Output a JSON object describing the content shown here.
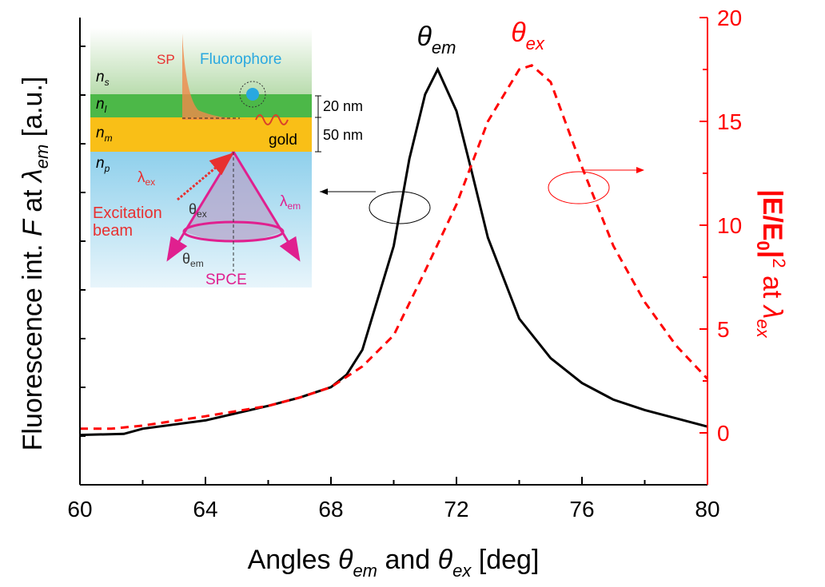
{
  "chart_data": {
    "type": "line",
    "x_label": [
      "Angles ",
      "θ",
      "em",
      " and ",
      "θ",
      "ex",
      " [deg]"
    ],
    "y_label": [
      "Fluorescence int. ",
      "F",
      " at ",
      "λ",
      "em",
      " [a.u.]"
    ],
    "y2_label": [
      "|E/E",
      "0",
      "|",
      "2",
      " at ",
      "λ",
      "ex"
    ],
    "xlim": [
      60,
      80
    ],
    "xticks": [
      60,
      64,
      68,
      72,
      76,
      80
    ],
    "ylim": [
      -2.5,
      20
    ],
    "y2lim": [
      -2.5,
      20
    ],
    "y2ticks": [
      0,
      5,
      10,
      15,
      20
    ],
    "series": [
      {
        "name": "θem",
        "sub": "em",
        "color": "#000000",
        "dash": false,
        "x": [
          60,
          61.4,
          62,
          64,
          66,
          67,
          68,
          68.5,
          69,
          70,
          70.5,
          71,
          71.4,
          72,
          72.5,
          73,
          74,
          75,
          76,
          77,
          78,
          79,
          80
        ],
        "values": [
          -0.1,
          -0.05,
          0.2,
          0.6,
          1.3,
          1.7,
          2.2,
          2.8,
          4.0,
          9.0,
          13.2,
          16.3,
          17.5,
          15.5,
          12.5,
          9.4,
          5.5,
          3.6,
          2.4,
          1.6,
          1.1,
          0.7,
          0.3
        ]
      },
      {
        "name": "θex",
        "sub": "ex",
        "color": "#ff0000",
        "dash": true,
        "axis": "y2",
        "x": [
          60,
          61,
          62,
          64,
          66,
          67,
          68,
          69,
          70,
          71,
          72,
          73,
          74,
          74.4,
          75,
          76,
          77,
          78,
          79,
          80
        ],
        "values": [
          0.2,
          0.2,
          0.35,
          0.8,
          1.3,
          1.7,
          2.2,
          3.2,
          4.7,
          7.8,
          11.0,
          15.0,
          17.5,
          17.7,
          16.9,
          12.8,
          9.0,
          6.3,
          4.2,
          2.6
        ]
      }
    ],
    "inset": {
      "sp": "SP",
      "fluorophore": "Fluorophore",
      "layers": [
        [
          "n",
          "s"
        ],
        [
          "n",
          "l"
        ],
        [
          "n",
          "m"
        ],
        [
          "n",
          "p"
        ]
      ],
      "thickness": [
        "20 nm",
        "50 nm"
      ],
      "gold": "gold",
      "lambda_ex": [
        "λ",
        "ex"
      ],
      "lambda_em": [
        "λ",
        "em"
      ],
      "theta_ex": [
        "θ",
        "ex"
      ],
      "theta_em": [
        "θ",
        "em"
      ],
      "excitation": [
        "Excitation",
        "beam"
      ],
      "spce": "SPCE"
    }
  }
}
